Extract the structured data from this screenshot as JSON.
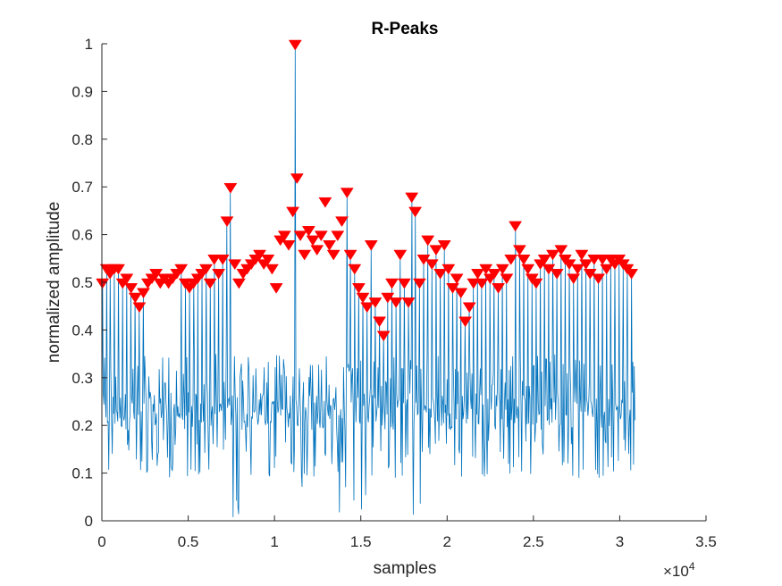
{
  "chart_data": {
    "type": "line",
    "title": "R-Peaks",
    "xlabel": "samples",
    "ylabel": "normalized amplitude",
    "xlim": [
      0,
      35000
    ],
    "ylim": [
      0,
      1
    ],
    "x_exponent_label": "×10",
    "x_exponent_power": "4",
    "x_ticks": [
      0,
      5000,
      10000,
      15000,
      20000,
      25000,
      30000,
      35000
    ],
    "x_tick_labels": [
      "0",
      "0.5",
      "1",
      "1.5",
      "2",
      "2.5",
      "3",
      "3.5"
    ],
    "y_ticks": [
      0,
      0.1,
      0.2,
      0.3,
      0.4,
      0.5,
      0.6,
      0.7,
      0.8,
      0.9,
      1
    ],
    "y_tick_labels": [
      "0",
      "0.1",
      "0.2",
      "0.3",
      "0.4",
      "0.5",
      "0.6",
      "0.7",
      "0.8",
      "0.9",
      "1"
    ],
    "grid": false,
    "legend": "none",
    "signal_x_range": [
      0,
      30900
    ],
    "signal_baseline": 0.23,
    "signal_color": "#0072BD",
    "marker_color": "#FF0000",
    "series": [
      {
        "kind": "markers",
        "marker": "down-triangle",
        "peaks": [
          [
            30,
            0.5
          ],
          [
            270,
            0.53
          ],
          [
            470,
            0.52
          ],
          [
            720,
            0.53
          ],
          [
            960,
            0.53
          ],
          [
            1200,
            0.5
          ],
          [
            1440,
            0.51
          ],
          [
            1690,
            0.49
          ],
          [
            1930,
            0.47
          ],
          [
            2170,
            0.45
          ],
          [
            2410,
            0.48
          ],
          [
            2660,
            0.5
          ],
          [
            2900,
            0.51
          ],
          [
            3140,
            0.52
          ],
          [
            3380,
            0.5
          ],
          [
            3620,
            0.51
          ],
          [
            3860,
            0.5
          ],
          [
            4100,
            0.51
          ],
          [
            4340,
            0.52
          ],
          [
            4590,
            0.53
          ],
          [
            4830,
            0.5
          ],
          [
            5070,
            0.49
          ],
          [
            5310,
            0.5
          ],
          [
            5550,
            0.51
          ],
          [
            5790,
            0.52
          ],
          [
            6030,
            0.53
          ],
          [
            6270,
            0.5
          ],
          [
            6510,
            0.55
          ],
          [
            6760,
            0.52
          ],
          [
            7000,
            0.55
          ],
          [
            7250,
            0.63
          ],
          [
            7450,
            0.7
          ],
          [
            7700,
            0.54
          ],
          [
            7940,
            0.5
          ],
          [
            8180,
            0.52
          ],
          [
            8420,
            0.53
          ],
          [
            8660,
            0.54
          ],
          [
            8900,
            0.55
          ],
          [
            9140,
            0.56
          ],
          [
            9380,
            0.54
          ],
          [
            9620,
            0.55
          ],
          [
            9860,
            0.53
          ],
          [
            10100,
            0.49
          ],
          [
            10340,
            0.59
          ],
          [
            10580,
            0.6
          ],
          [
            10820,
            0.58
          ],
          [
            11060,
            0.65
          ],
          [
            11200,
            1.0
          ],
          [
            11300,
            0.72
          ],
          [
            11500,
            0.6
          ],
          [
            11740,
            0.56
          ],
          [
            11980,
            0.61
          ],
          [
            12220,
            0.59
          ],
          [
            12460,
            0.57
          ],
          [
            12700,
            0.6
          ],
          [
            12940,
            0.67
          ],
          [
            13180,
            0.58
          ],
          [
            13420,
            0.56
          ],
          [
            13660,
            0.6
          ],
          [
            13900,
            0.63
          ],
          [
            14200,
            0.69
          ],
          [
            14400,
            0.56
          ],
          [
            14640,
            0.53
          ],
          [
            14880,
            0.49
          ],
          [
            15120,
            0.47
          ],
          [
            15360,
            0.45
          ],
          [
            15600,
            0.58
          ],
          [
            15840,
            0.46
          ],
          [
            16080,
            0.42
          ],
          [
            16320,
            0.39
          ],
          [
            16560,
            0.47
          ],
          [
            16800,
            0.5
          ],
          [
            17040,
            0.46
          ],
          [
            17280,
            0.56
          ],
          [
            17520,
            0.5
          ],
          [
            17760,
            0.46
          ],
          [
            17950,
            0.68
          ],
          [
            18150,
            0.65
          ],
          [
            18400,
            0.5
          ],
          [
            18640,
            0.55
          ],
          [
            18880,
            0.59
          ],
          [
            19120,
            0.54
          ],
          [
            19360,
            0.57
          ],
          [
            19600,
            0.52
          ],
          [
            19840,
            0.58
          ],
          [
            20080,
            0.53
          ],
          [
            20320,
            0.49
          ],
          [
            20560,
            0.51
          ],
          [
            20800,
            0.48
          ],
          [
            21050,
            0.42
          ],
          [
            21290,
            0.45
          ],
          [
            21530,
            0.5
          ],
          [
            21770,
            0.52
          ],
          [
            22010,
            0.5
          ],
          [
            22250,
            0.53
          ],
          [
            22490,
            0.51
          ],
          [
            22730,
            0.52
          ],
          [
            22970,
            0.49
          ],
          [
            23210,
            0.53
          ],
          [
            23450,
            0.51
          ],
          [
            23700,
            0.55
          ],
          [
            23950,
            0.62
          ],
          [
            24200,
            0.57
          ],
          [
            24440,
            0.55
          ],
          [
            24680,
            0.53
          ],
          [
            24920,
            0.51
          ],
          [
            25160,
            0.5
          ],
          [
            25400,
            0.54
          ],
          [
            25640,
            0.55
          ],
          [
            25880,
            0.53
          ],
          [
            26120,
            0.56
          ],
          [
            26360,
            0.52
          ],
          [
            26600,
            0.57
          ],
          [
            26840,
            0.55
          ],
          [
            27080,
            0.54
          ],
          [
            27320,
            0.51
          ],
          [
            27560,
            0.53
          ],
          [
            27800,
            0.56
          ],
          [
            28040,
            0.54
          ],
          [
            28280,
            0.52
          ],
          [
            28520,
            0.55
          ],
          [
            28760,
            0.51
          ],
          [
            29000,
            0.55
          ],
          [
            29240,
            0.53
          ],
          [
            29480,
            0.55
          ],
          [
            29720,
            0.54
          ],
          [
            29960,
            0.55
          ],
          [
            30200,
            0.54
          ],
          [
            30440,
            0.53
          ],
          [
            30680,
            0.52
          ]
        ]
      }
    ]
  }
}
